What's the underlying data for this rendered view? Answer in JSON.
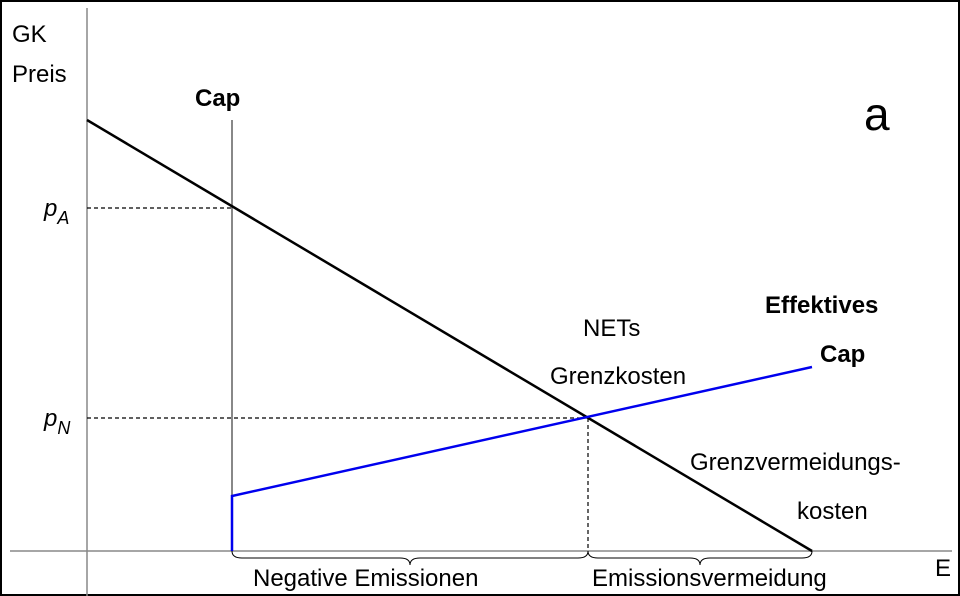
{
  "axes": {
    "y_label_line1": "GK",
    "y_label_line2": "Preis",
    "x_label": "E"
  },
  "panel_label": "a",
  "cap_label": "Cap",
  "price_a": {
    "symbol": "p",
    "subscript": "A"
  },
  "price_n": {
    "symbol": "p",
    "subscript": "N"
  },
  "effective_cap": {
    "line1": "Effektives",
    "line2": "Cap"
  },
  "nets_curve": {
    "line1": "NETs",
    "line2": "Grenzkosten"
  },
  "abatement_curve": {
    "line1": "Grenzvermeidungs-",
    "line2": "kosten"
  },
  "braces": {
    "left": "Negative Emissionen",
    "right": "Emissionsvermeidung"
  }
}
